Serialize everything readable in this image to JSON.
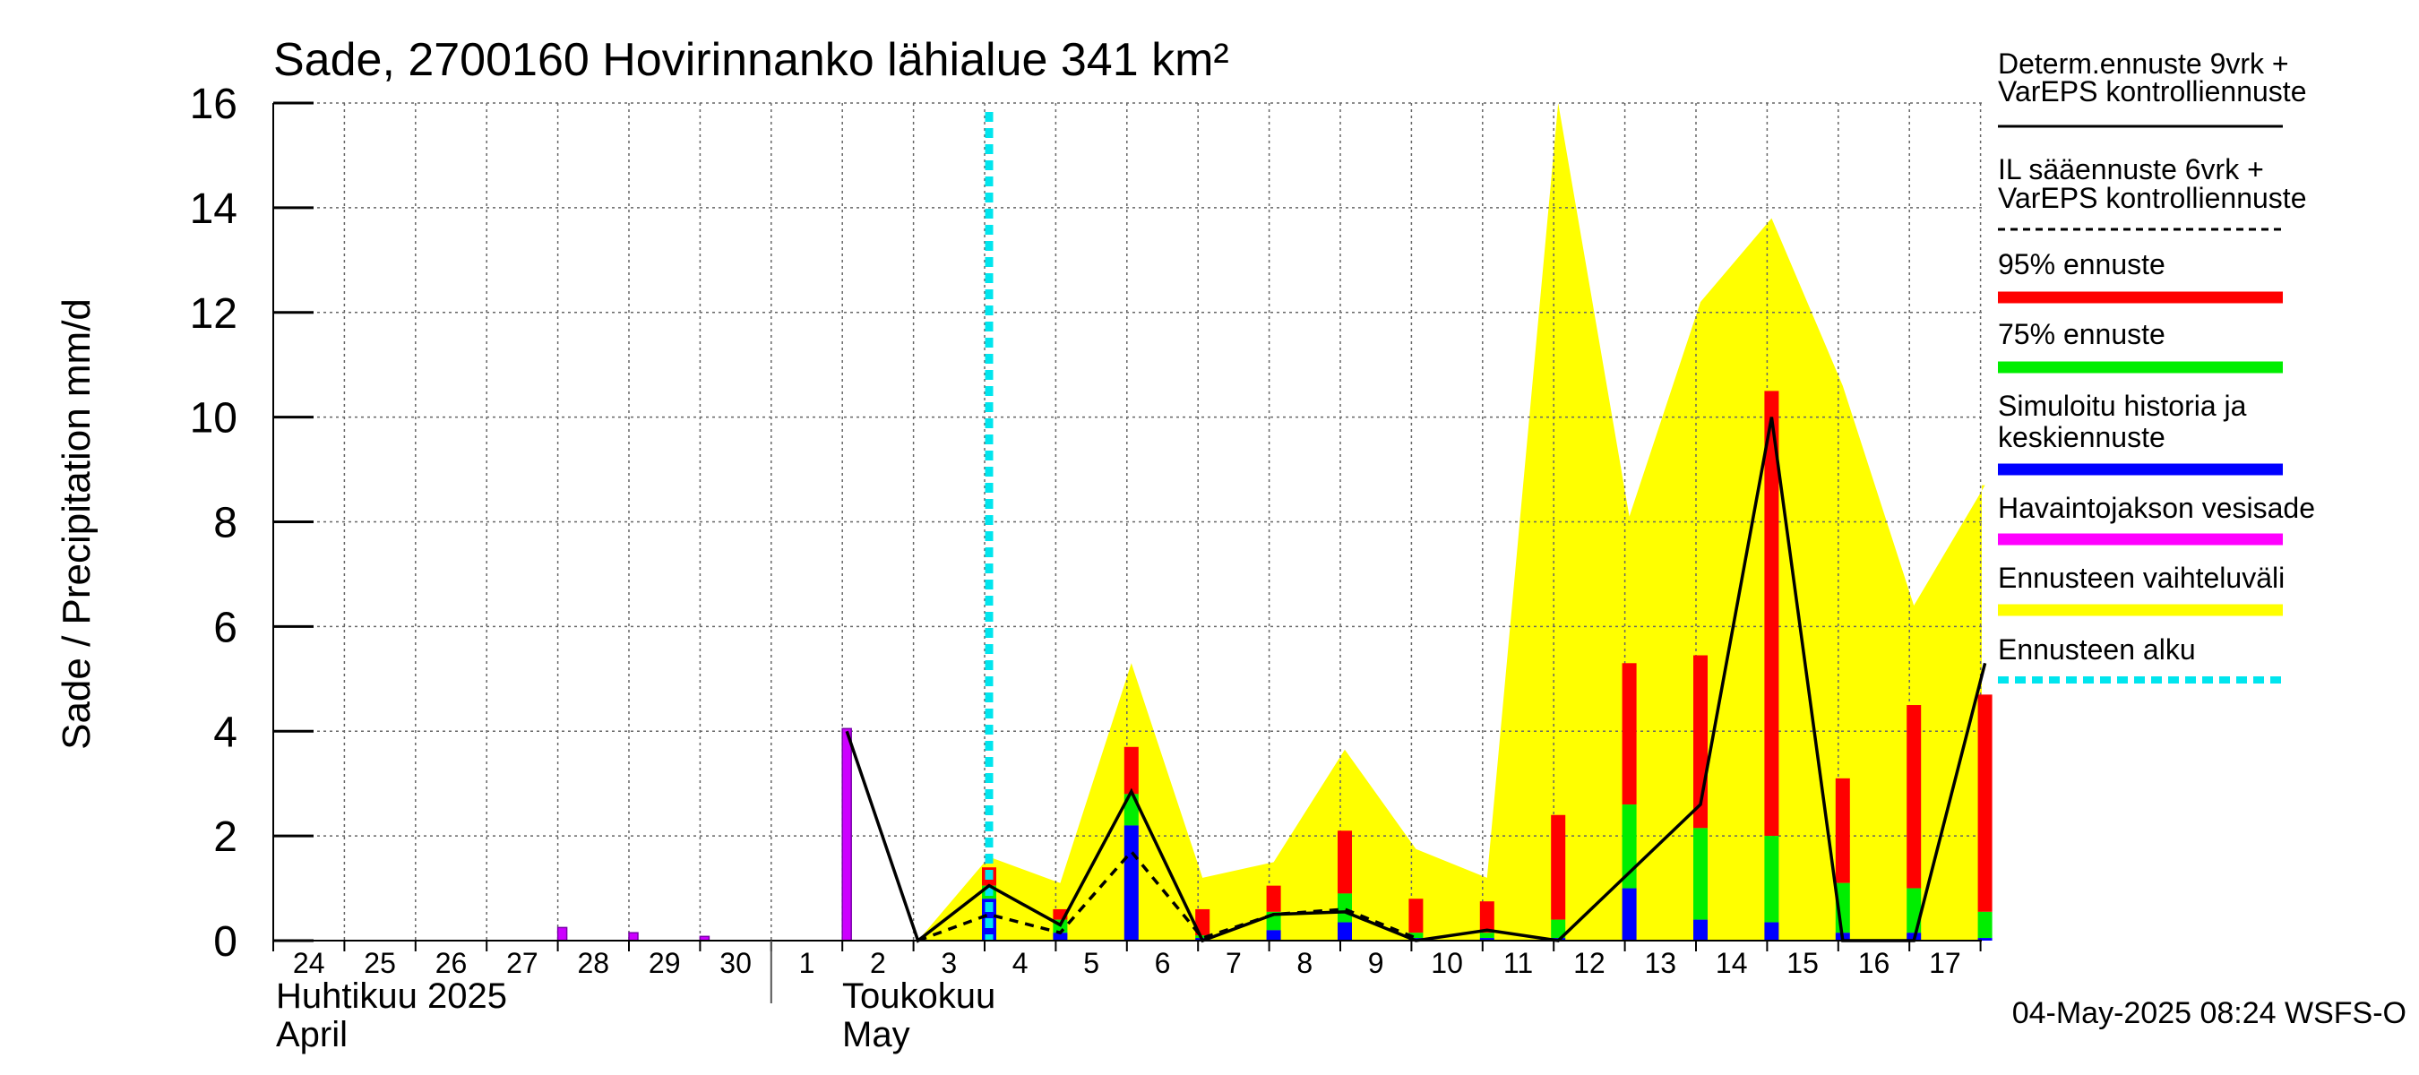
{
  "chart_data": {
    "type": "bar",
    "title": "Sade, 2700160 Hovirinnanko lähialue 341 km²",
    "ylabel": "Sade / Precipitation   mm/d",
    "ylim": [
      0,
      16
    ],
    "yticks": [
      "0",
      "2",
      "4",
      "6",
      "8",
      "10",
      "12",
      "14",
      "16"
    ],
    "day_labels": [
      "24",
      "25",
      "26",
      "27",
      "28",
      "29",
      "30",
      "1",
      "2",
      "3",
      "4",
      "5",
      "6",
      "7",
      "8",
      "9",
      "10",
      "11",
      "12",
      "13",
      "14",
      "15",
      "16",
      "17"
    ],
    "month_labels": {
      "april_fi": "Huhtikuu  2025",
      "april_en": "April",
      "may_fi": "Toukokuu",
      "may_en": "May"
    },
    "forecast_start_day": "4",
    "observed_rain": [
      {
        "day": "28",
        "value": 0.25
      },
      {
        "day": "29",
        "value": 0.15
      },
      {
        "day": "30",
        "value": 0.08
      },
      {
        "day": "2",
        "value": 4.05
      }
    ],
    "forecast_bars": [
      {
        "day": "4",
        "p95": 1.4,
        "p75": 1.05,
        "median": 0.8
      },
      {
        "day": "5",
        "p95": 0.6,
        "p75": 0.4,
        "median": 0.15
      },
      {
        "day": "6",
        "p95": 3.7,
        "p75": 2.8,
        "median": 2.2
      },
      {
        "day": "7",
        "p95": 0.6,
        "p75": 0.1,
        "median": 0.05
      },
      {
        "day": "8",
        "p95": 1.05,
        "p75": 0.55,
        "median": 0.2
      },
      {
        "day": "9",
        "p95": 2.1,
        "p75": 0.9,
        "median": 0.35
      },
      {
        "day": "10",
        "p95": 0.8,
        "p75": 0.15,
        "median": 0.05
      },
      {
        "day": "11",
        "p95": 0.75,
        "p75": 0.15,
        "median": 0.05
      },
      {
        "day": "12",
        "p95": 2.4,
        "p75": 0.4,
        "median": 0.05
      },
      {
        "day": "13",
        "p95": 5.3,
        "p75": 2.6,
        "median": 1.0
      },
      {
        "day": "14",
        "p95": 5.45,
        "p75": 2.15,
        "median": 0.4
      },
      {
        "day": "15",
        "p95": 10.5,
        "p75": 2.0,
        "median": 0.35
      },
      {
        "day": "16",
        "p95": 3.1,
        "p75": 1.1,
        "median": 0.15
      },
      {
        "day": "17",
        "p95": 4.5,
        "p75": 1.0,
        "median": 0.15
      },
      {
        "day": "18",
        "p95": 4.7,
        "p75": 0.55,
        "median": 0.05
      }
    ],
    "deterministic_line": [
      {
        "day": "2",
        "value": 4.0
      },
      {
        "day": "3",
        "value": 0.0
      },
      {
        "day": "4",
        "value": 1.05
      },
      {
        "day": "5",
        "value": 0.3
      },
      {
        "day": "6",
        "value": 2.85
      },
      {
        "day": "7",
        "value": 0.0
      },
      {
        "day": "8",
        "value": 0.5
      },
      {
        "day": "9",
        "value": 0.55
      },
      {
        "day": "10",
        "value": 0.0
      },
      {
        "day": "11",
        "value": 0.2
      },
      {
        "day": "12",
        "value": 0.0
      },
      {
        "day": "14",
        "value": 2.6
      },
      {
        "day": "15",
        "value": 10.0
      },
      {
        "day": "16",
        "value": 0.0
      },
      {
        "day": "17",
        "value": 0.0
      },
      {
        "day": "18",
        "value": 5.3
      }
    ],
    "il_line": [
      {
        "day": "3",
        "value": 0.0
      },
      {
        "day": "4",
        "value": 0.5
      },
      {
        "day": "5",
        "value": 0.15
      },
      {
        "day": "6",
        "value": 1.7
      },
      {
        "day": "7",
        "value": 0.05
      },
      {
        "day": "8",
        "value": 0.5
      },
      {
        "day": "9",
        "value": 0.6
      },
      {
        "day": "10",
        "value": 0.05
      }
    ],
    "range_band": [
      {
        "day": "3",
        "value": 0.0
      },
      {
        "day": "4",
        "value": 1.6
      },
      {
        "day": "5",
        "value": 1.1
      },
      {
        "day": "6",
        "value": 5.3
      },
      {
        "day": "7",
        "value": 1.2
      },
      {
        "day": "8",
        "value": 1.5
      },
      {
        "day": "9",
        "value": 3.65
      },
      {
        "day": "10",
        "value": 1.75
      },
      {
        "day": "11",
        "value": 1.2
      },
      {
        "day": "12",
        "value": 16.0
      },
      {
        "day": "13",
        "value": 8.1
      },
      {
        "day": "14",
        "value": 12.2
      },
      {
        "day": "15",
        "value": 13.8
      },
      {
        "day": "16",
        "value": 10.6
      },
      {
        "day": "17",
        "value": 6.4
      },
      {
        "day": "18",
        "value": 8.7
      }
    ],
    "legend": [
      {
        "key": "determ",
        "line1": "Determ.ennuste 9vrk +",
        "line2": "VarEPS kontrolliennuste",
        "color": "#000000",
        "style": "solid"
      },
      {
        "key": "il",
        "line1": "IL sääennuste 6vrk  +",
        "line2": "  VarEPS kontrolliennuste",
        "color": "#000000",
        "style": "dashed"
      },
      {
        "key": "p95",
        "line1": "95% ennuste",
        "line2": "",
        "color": "#ff0000",
        "style": "thick"
      },
      {
        "key": "p75",
        "line1": "75% ennuste",
        "line2": "",
        "color": "#00ee00",
        "style": "thick"
      },
      {
        "key": "median",
        "line1": "Simuloitu historia ja",
        "line2": "keskiennuste",
        "color": "#0000ff",
        "style": "thick"
      },
      {
        "key": "obs",
        "line1": "Havaintojakson vesisade",
        "line2": "",
        "color": "#ff00ff",
        "style": "thick"
      },
      {
        "key": "band",
        "line1": "Ennusteen vaihteluväli",
        "line2": "",
        "color": "#ffff00",
        "style": "thick"
      },
      {
        "key": "start",
        "line1": "Ennusteen alku",
        "line2": "",
        "color": "#00e5ee",
        "style": "dotted"
      }
    ],
    "timestamp": "04-May-2025 08:24 WSFS-O"
  }
}
